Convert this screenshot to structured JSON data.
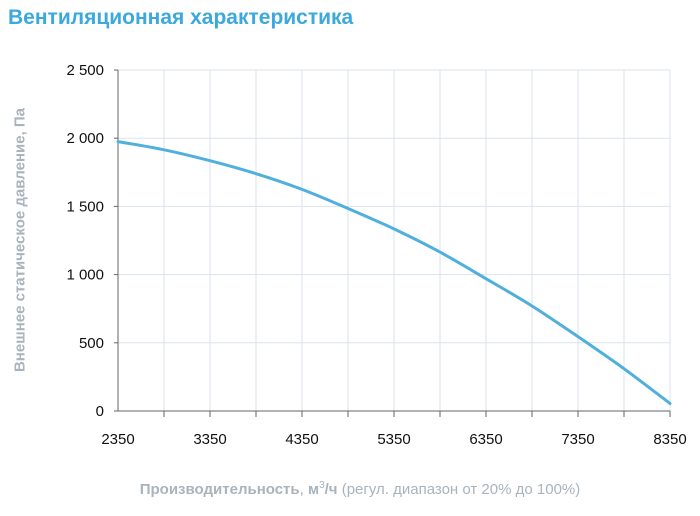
{
  "chart_data": {
    "type": "line",
    "title": "Вентиляционная характеристика",
    "ylabel": "Внешнее статическое давление, Па",
    "xlabel": {
      "bold": "Производительность",
      "unit_prefix": ", ",
      "unit": "м",
      "sup": "3",
      "unit_suffix": "/ч",
      "note": " (регул. диапазон от 20% до 100%)"
    },
    "xlim": [
      2350,
      8350
    ],
    "ylim": [
      0,
      2500
    ],
    "x_ticks": [
      2350,
      3350,
      4350,
      5350,
      6350,
      7350,
      8350
    ],
    "x_tick_labels": [
      "2350",
      "3350",
      "4350",
      "5350",
      "6350",
      "7350",
      "8350"
    ],
    "x_grid_step": 500,
    "y_ticks": [
      0,
      500,
      1000,
      1500,
      2000,
      2500
    ],
    "y_tick_labels": [
      "0",
      "500",
      "1 000",
      "1 500",
      "2 000",
      "2 500"
    ],
    "grid": true,
    "line_color": "#4fb0dd",
    "title_color": "#3ba9dd",
    "series": [
      {
        "x": [
          2350,
          2850,
          3350,
          3850,
          4350,
          4850,
          5350,
          5850,
          6350,
          6850,
          7350,
          7850,
          8350
        ],
        "y": [
          1975,
          1915,
          1835,
          1740,
          1625,
          1485,
          1335,
          1165,
          970,
          770,
          545,
          310,
          55
        ]
      }
    ]
  }
}
